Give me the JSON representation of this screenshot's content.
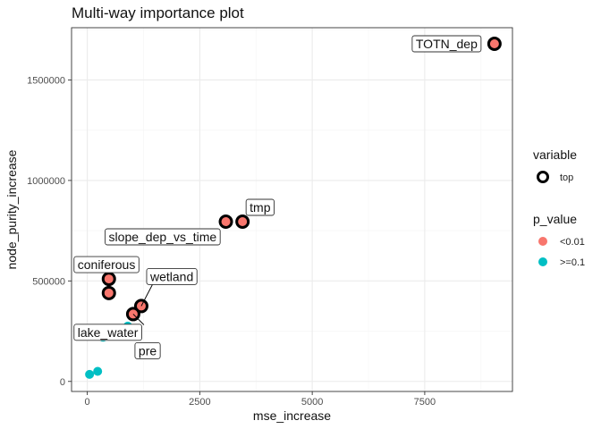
{
  "chart_data": {
    "type": "scatter",
    "title": "Multi-way importance plot",
    "xlabel": "mse_increase",
    "ylabel": "node_purity_increase",
    "xlim": [
      -350,
      9450
    ],
    "ylim": [
      -50000,
      1760000
    ],
    "x_ticks": [
      0,
      2500,
      5000,
      7500
    ],
    "x_tick_labels": [
      "0",
      "2500",
      "5000",
      "7500"
    ],
    "y_ticks": [
      0,
      500000,
      1000000,
      1500000
    ],
    "y_tick_labels": [
      "0",
      "500000",
      "1000000",
      "1500000"
    ],
    "grid": true,
    "colors": {
      "<0.01": "#F8766D",
      ">=0.1": "#00BFC4",
      "top_ring": "#000000"
    },
    "legend": {
      "placement": "right",
      "variable_title": "variable",
      "variable_entries": [
        "top"
      ],
      "p_value_title": "p_value",
      "p_value_entries": [
        "<0.01",
        ">=0.1"
      ]
    },
    "points": [
      {
        "label": "TOTN_dep",
        "x": 9050,
        "y": 1680000,
        "p_value": "<0.01",
        "top": true
      },
      {
        "label": "tmp",
        "x": 3450,
        "y": 795000,
        "p_value": "<0.01",
        "top": true
      },
      {
        "label": "slope_dep_vs_time",
        "x": 3080,
        "y": 795000,
        "p_value": "<0.01",
        "top": true
      },
      {
        "label": "coniferous",
        "x": 480,
        "y": 510000,
        "p_value": "<0.01",
        "top": true
      },
      {
        "label": "lake_water",
        "x": 480,
        "y": 440000,
        "p_value": "<0.01",
        "top": true
      },
      {
        "label": "wetland",
        "x": 1200,
        "y": 375000,
        "p_value": "<0.01",
        "top": true
      },
      {
        "label": "pre",
        "x": 1020,
        "y": 335000,
        "p_value": "<0.01",
        "top": true
      },
      {
        "label": "",
        "x": 600,
        "y": 228000,
        "p_value": "<0.01",
        "top": false
      },
      {
        "label": "",
        "x": 350,
        "y": 220000,
        "p_value": ">=0.1",
        "top": false
      },
      {
        "label": "",
        "x": 900,
        "y": 275000,
        "p_value": ">=0.1",
        "top": false
      },
      {
        "label": "",
        "x": 230,
        "y": 50000,
        "p_value": ">=0.1",
        "top": false
      },
      {
        "label": "",
        "x": 50,
        "y": 35000,
        "p_value": ">=0.1",
        "top": false
      }
    ]
  }
}
